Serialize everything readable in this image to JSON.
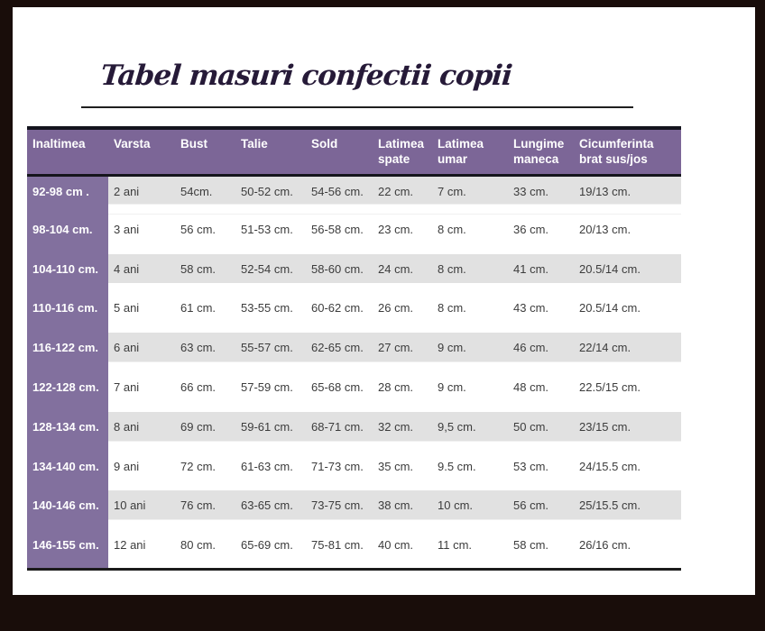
{
  "page": {
    "title": "Tabel masuri confectii copii"
  },
  "colors": {
    "header_purple": "#7c6697",
    "row_label_purple": "#82709e",
    "stripe_gray": "#e1e1e1",
    "frame_dark": "#190d0a",
    "title_ink": "#261a38"
  },
  "table": {
    "columns": [
      "Inaltimea",
      "Varsta",
      "Bust",
      "Talie",
      "Sold",
      "Latimea spate",
      "Latimea umar",
      "Lungime maneca",
      "Cicumferinta brat sus/jos"
    ],
    "rows": [
      [
        "92-98 cm .",
        "2 ani",
        "54cm.",
        "50-52 cm.",
        "54-56 cm.",
        "22 cm.",
        "7 cm.",
        "33 cm.",
        "19/13 cm."
      ],
      [
        "98-104 cm.",
        "3 ani",
        "56 cm.",
        "51-53 cm.",
        "56-58 cm.",
        "23 cm.",
        "8 cm.",
        "36 cm.",
        "20/13 cm."
      ],
      [
        "104-110 cm.",
        "4 ani",
        "58 cm.",
        "52-54 cm.",
        "58-60 cm.",
        "24 cm.",
        "8 cm.",
        "41 cm.",
        "20.5/14 cm."
      ],
      [
        "110-116 cm.",
        "5 ani",
        "61 cm.",
        "53-55 cm.",
        "60-62 cm.",
        "26 cm.",
        "8 cm.",
        "43 cm.",
        "20.5/14 cm."
      ],
      [
        "116-122 cm.",
        "6 ani",
        "63 cm.",
        "55-57 cm.",
        "62-65 cm.",
        "27 cm.",
        "9 cm.",
        "46 cm.",
        "22/14 cm."
      ],
      [
        "122-128 cm.",
        "7 ani",
        "66 cm.",
        "57-59 cm.",
        "65-68 cm.",
        "28 cm.",
        "9 cm.",
        "48 cm.",
        "22.5/15 cm."
      ],
      [
        "128-134 cm.",
        "8 ani",
        "69 cm.",
        "59-61 cm.",
        "68-71 cm.",
        "32 cm.",
        "9,5 cm.",
        "50 cm.",
        "23/15 cm."
      ],
      [
        "134-140 cm.",
        "9 ani",
        "72 cm.",
        "61-63 cm.",
        "71-73 cm.",
        "35 cm.",
        "9.5 cm.",
        "53 cm.",
        "24/15.5 cm."
      ],
      [
        "140-146 cm.",
        "10 ani",
        "76 cm.",
        "63-65 cm.",
        "73-75 cm.",
        "38 cm.",
        "10 cm.",
        "56 cm.",
        "25/15.5 cm."
      ],
      [
        "146-155 cm.",
        "12 ani",
        "80 cm.",
        "65-69 cm.",
        "75-81 cm.",
        "40 cm.",
        "11 cm.",
        "58 cm.",
        "26/16 cm."
      ]
    ]
  }
}
